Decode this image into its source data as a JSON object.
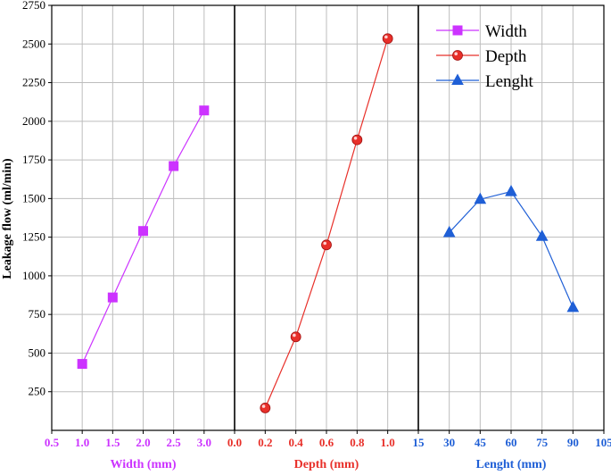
{
  "chart_data": {
    "type": "line",
    "ylabel": "Leakage flow (ml/min)",
    "ylim": [
      0,
      2750
    ],
    "yticks": [
      250,
      500,
      750,
      1000,
      1250,
      1500,
      1750,
      2000,
      2250,
      2500,
      2750
    ],
    "grid": true,
    "legend_position": "top-right",
    "panels": [
      {
        "xlabel": "Width (mm)",
        "color": "#cc33ff",
        "marker": "square",
        "xlim": [
          0.5,
          3.5
        ],
        "xticks": [
          "0.5",
          "1.0",
          "1.5",
          "2.0",
          "2.5",
          "3.0"
        ],
        "series": [
          {
            "name": "Width",
            "x": [
              1.0,
              1.5,
              2.0,
              2.5,
              3.0
            ],
            "values": [
              430,
              860,
              1290,
              1710,
              2070
            ]
          }
        ]
      },
      {
        "xlabel": "Depth (mm)",
        "color": "#e8302a",
        "marker": "circle",
        "xlim": [
          0.0,
          1.2
        ],
        "xticks": [
          "0.0",
          "0.2",
          "0.4",
          "0.6",
          "0.8",
          "1.0"
        ],
        "series": [
          {
            "name": "Depth",
            "x": [
              0.2,
              0.4,
              0.6,
              0.8,
              1.0
            ],
            "values": [
              145,
              605,
              1200,
              1880,
              2535
            ]
          }
        ]
      },
      {
        "xlabel": "Lenght (mm)",
        "color": "#1f5fd6",
        "marker": "triangle",
        "xlim": [
          15,
          105
        ],
        "xticks": [
          "15",
          "30",
          "45",
          "60",
          "75",
          "90",
          "105"
        ],
        "series": [
          {
            "name": "Lenght",
            "x": [
              30,
              45,
              60,
              75,
              90
            ],
            "values": [
              1280,
              1495,
              1545,
              1255,
              795
            ]
          }
        ]
      }
    ]
  }
}
